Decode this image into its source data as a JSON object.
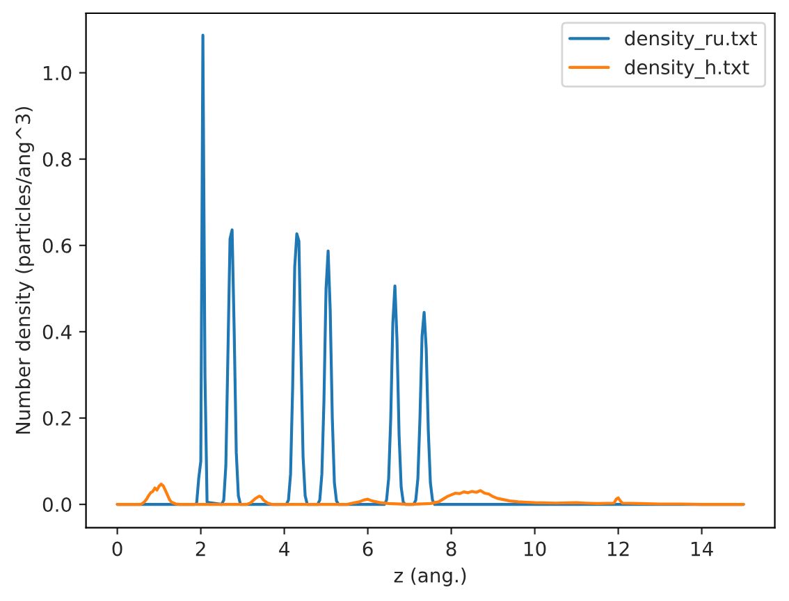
{
  "chart_data": {
    "type": "line",
    "xlabel": "z (ang.)",
    "ylabel": "Number density (particles/ang^3)",
    "xlim": [
      -0.75,
      15.75
    ],
    "xticks": [
      0,
      2,
      4,
      6,
      8,
      10,
      12,
      14
    ],
    "ylim": [
      -0.054,
      1.138
    ],
    "yticks": [
      {
        "value": 0,
        "label": "0.0"
      },
      0.2,
      0.4,
      0.6,
      0.8,
      {
        "value": 1,
        "label": "1.0"
      }
    ],
    "grid": false,
    "legend": "top right",
    "line_style": "solid",
    "marker": "none",
    "series": [
      {
        "name": "density_ru.txt",
        "color": "#1f77b4",
        "x": [
          0,
          1.85,
          1.9,
          1.95,
          2.0,
          2.05,
          2.1,
          2.15,
          2.5,
          2.55,
          2.6,
          2.65,
          2.7,
          2.75,
          2.8,
          2.85,
          2.9,
          2.95,
          4.05,
          4.1,
          4.15,
          4.2,
          4.25,
          4.3,
          4.35,
          4.4,
          4.45,
          4.5,
          4.55,
          4.8,
          4.85,
          4.9,
          4.95,
          5.0,
          5.05,
          5.1,
          5.15,
          5.2,
          5.25,
          5.3,
          6.4,
          6.45,
          6.5,
          6.55,
          6.6,
          6.65,
          6.7,
          6.75,
          6.8,
          6.85,
          6.9,
          7.1,
          7.15,
          7.2,
          7.25,
          7.3,
          7.35,
          7.4,
          7.45,
          7.5,
          7.55,
          7.6,
          15
        ],
        "values": [
          0,
          0,
          0.002,
          0.06,
          0.1,
          1.087,
          0.3,
          0.005,
          0,
          0.01,
          0.09,
          0.35,
          0.615,
          0.636,
          0.4,
          0.12,
          0.02,
          0,
          0,
          0.01,
          0.07,
          0.27,
          0.55,
          0.627,
          0.61,
          0.35,
          0.11,
          0.02,
          0,
          0,
          0.01,
          0.07,
          0.24,
          0.5,
          0.587,
          0.45,
          0.2,
          0.05,
          0.008,
          0,
          0,
          0.01,
          0.06,
          0.2,
          0.42,
          0.506,
          0.38,
          0.16,
          0.04,
          0.005,
          0,
          0,
          0.01,
          0.06,
          0.2,
          0.39,
          0.445,
          0.36,
          0.17,
          0.05,
          0.01,
          0,
          0
        ]
      },
      {
        "name": "density_h.txt",
        "color": "#ff7f0e",
        "x": [
          0,
          0.55,
          0.6,
          0.65,
          0.7,
          0.75,
          0.8,
          0.85,
          0.9,
          0.95,
          1.0,
          1.05,
          1.1,
          1.15,
          1.2,
          1.25,
          1.3,
          1.4,
          1.5,
          3.1,
          3.2,
          3.3,
          3.4,
          3.45,
          3.5,
          3.6,
          3.7,
          5.5,
          5.7,
          5.8,
          5.9,
          6.0,
          6.1,
          6.2,
          6.3,
          6.5,
          7.0,
          7.5,
          7.7,
          7.8,
          7.9,
          8.0,
          8.1,
          8.2,
          8.3,
          8.4,
          8.5,
          8.6,
          8.7,
          8.8,
          8.9,
          9.0,
          9.1,
          9.2,
          9.4,
          9.6,
          9.8,
          10.0,
          10.5,
          11.0,
          11.2,
          11.5,
          11.9,
          11.95,
          12.0,
          12.05,
          12.1,
          12.5,
          13.0,
          13.5,
          14.0,
          15
        ],
        "values": [
          0,
          0,
          0.002,
          0.006,
          0.012,
          0.02,
          0.027,
          0.03,
          0.038,
          0.033,
          0.042,
          0.047,
          0.043,
          0.033,
          0.022,
          0.011,
          0.005,
          0.001,
          0,
          0,
          0.004,
          0.013,
          0.019,
          0.017,
          0.01,
          0.003,
          0,
          0,
          0.004,
          0.006,
          0.01,
          0.012,
          0.008,
          0.006,
          0.004,
          0.002,
          0,
          0.002,
          0.006,
          0.012,
          0.018,
          0.022,
          0.026,
          0.025,
          0.029,
          0.027,
          0.03,
          0.028,
          0.032,
          0.026,
          0.024,
          0.018,
          0.014,
          0.012,
          0.008,
          0.006,
          0.005,
          0.004,
          0.003,
          0.004,
          0.003,
          0.002,
          0.003,
          0.012,
          0.015,
          0.008,
          0.003,
          0.002,
          0.001,
          0.001,
          0,
          0
        ]
      }
    ]
  }
}
